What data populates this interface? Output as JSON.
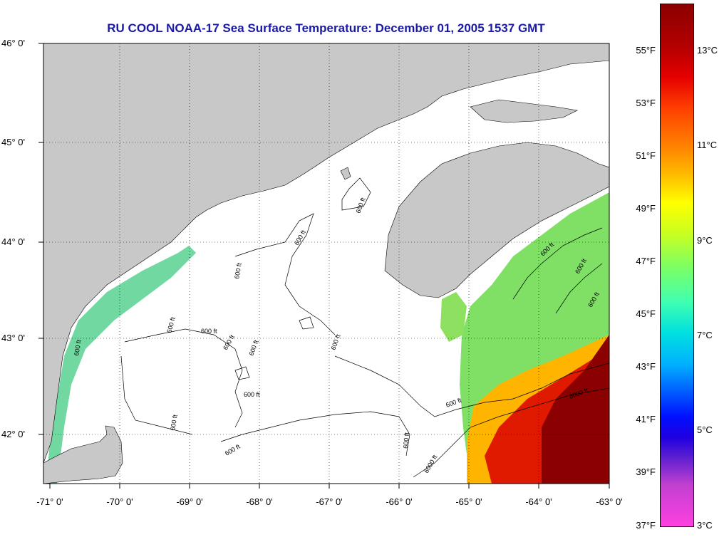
{
  "title": "RU COOL  NOAA-17  Sea Surface Temperature:  December 01, 2005 1537 GMT",
  "axes": {
    "lat_labels": [
      "46° 0'",
      "45° 0'",
      "44° 0'",
      "43° 0'",
      "42° 0'"
    ],
    "lon_labels": [
      "-71° 0'",
      "-70° 0'",
      "-69° 0'",
      "-68° 0'",
      "-67° 0'",
      "-66° 0'",
      "-65° 0'",
      "-64° 0'",
      "-63° 0'"
    ]
  },
  "contours": {
    "label_600": "600 ft",
    "label_6000": "6000 ft"
  },
  "colorbar": {
    "fahrenheit": [
      "55°F",
      "53°F",
      "51°F",
      "49°F",
      "47°F",
      "45°F",
      "43°F",
      "41°F",
      "39°F",
      "37°F"
    ],
    "celsius": [
      "13°C",
      "11°C",
      "9°C",
      "7°C",
      "5°C",
      "3°C"
    ]
  },
  "colors": {
    "land": "#c8c8c8",
    "water_no_data": "#ffffff",
    "title": "#1a1aa6",
    "warm": "#8b0000",
    "cool": "#00b0ff"
  }
}
